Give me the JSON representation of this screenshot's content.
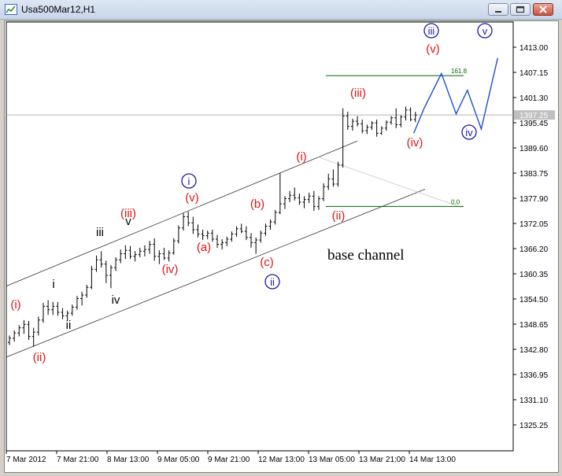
{
  "window": {
    "title": "Usa500Mar12,H1",
    "minimize_icon": "minimize-icon",
    "maximize_icon": "maximize-icon",
    "close_icon": "close-icon"
  },
  "chart_data": {
    "type": "line",
    "symbol": "Usa500Mar12",
    "timeframe": "H1",
    "ylim": [
      1319.4,
      1419.0
    ],
    "y_ticks": [
      "1413.00",
      "1407.15",
      "1401.30",
      "1395.45",
      "1389.60",
      "1383.75",
      "1377.90",
      "1372.05",
      "1366.20",
      "1360.35",
      "1354.50",
      "1348.65",
      "1342.80",
      "1336.95",
      "1331.10",
      "1325.25"
    ],
    "x_ticks": [
      "7 Mar 2012",
      "7 Mar 21:00",
      "8 Mar 13:00",
      "9 Mar 05:00",
      "9 Mar 21:00",
      "12 Mar 13:00",
      "13 Mar 05:00",
      "13 Mar 21:00",
      "14 Mar 13:00"
    ],
    "current_price": "1397.25",
    "price_bars": [
      [
        1344.4,
        1346.0,
        1343.8,
        1345.4
      ],
      [
        1345.4,
        1347.2,
        1344.6,
        1346.6
      ],
      [
        1346.6,
        1348.4,
        1345.8,
        1347.8
      ],
      [
        1347.8,
        1349.6,
        1346.4,
        1348.6
      ],
      [
        1348.6,
        1349.4,
        1345.0,
        1345.8
      ],
      [
        1345.8,
        1347.8,
        1343.4,
        1346.8
      ],
      [
        1346.8,
        1350.4,
        1346.0,
        1349.6
      ],
      [
        1349.6,
        1353.6,
        1349.0,
        1352.8
      ],
      [
        1352.8,
        1354.2,
        1350.8,
        1352.0
      ],
      [
        1352.0,
        1353.8,
        1350.8,
        1352.8
      ],
      [
        1352.8,
        1353.8,
        1350.6,
        1351.4
      ],
      [
        1351.4,
        1352.4,
        1349.8,
        1350.6
      ],
      [
        1350.6,
        1351.8,
        1349.4,
        1351.2
      ],
      [
        1351.2,
        1353.2,
        1350.6,
        1352.6
      ],
      [
        1352.6,
        1355.2,
        1352.0,
        1354.6
      ],
      [
        1354.6,
        1356.2,
        1353.0,
        1355.4
      ],
      [
        1355.4,
        1357.8,
        1354.8,
        1357.2
      ],
      [
        1357.2,
        1362.2,
        1356.8,
        1361.4
      ],
      [
        1361.4,
        1364.6,
        1360.8,
        1363.6
      ],
      [
        1363.6,
        1365.6,
        1361.8,
        1362.6
      ],
      [
        1362.6,
        1363.4,
        1358.2,
        1360.0
      ],
      [
        1360.0,
        1362.4,
        1357.0,
        1361.8
      ],
      [
        1361.8,
        1364.2,
        1361.0,
        1363.6
      ],
      [
        1363.6,
        1366.0,
        1362.8,
        1365.0
      ],
      [
        1365.0,
        1367.0,
        1363.8,
        1365.8
      ],
      [
        1365.8,
        1366.8,
        1363.8,
        1364.4
      ],
      [
        1364.4,
        1365.6,
        1363.2,
        1364.8
      ],
      [
        1364.8,
        1366.4,
        1364.2,
        1365.6
      ],
      [
        1365.6,
        1367.0,
        1364.4,
        1366.0
      ],
      [
        1366.0,
        1368.0,
        1365.0,
        1367.2
      ],
      [
        1367.2,
        1368.6,
        1363.4,
        1364.4
      ],
      [
        1364.4,
        1365.8,
        1362.6,
        1365.0
      ],
      [
        1365.0,
        1366.4,
        1363.6,
        1364.0
      ],
      [
        1364.0,
        1365.8,
        1363.2,
        1365.2
      ],
      [
        1365.2,
        1368.6,
        1364.8,
        1368.0
      ],
      [
        1368.0,
        1371.6,
        1367.4,
        1371.0
      ],
      [
        1371.0,
        1374.4,
        1370.4,
        1373.6
      ],
      [
        1373.6,
        1374.8,
        1371.4,
        1372.2
      ],
      [
        1372.2,
        1373.6,
        1369.6,
        1370.6
      ],
      [
        1370.6,
        1371.8,
        1368.8,
        1369.6
      ],
      [
        1369.6,
        1370.6,
        1368.2,
        1369.2
      ],
      [
        1369.2,
        1370.4,
        1368.4,
        1369.8
      ],
      [
        1369.8,
        1370.6,
        1367.8,
        1368.4
      ],
      [
        1368.4,
        1369.4,
        1366.4,
        1367.2
      ],
      [
        1367.2,
        1368.4,
        1366.0,
        1367.6
      ],
      [
        1367.6,
        1369.0,
        1366.8,
        1368.4
      ],
      [
        1368.4,
        1370.2,
        1367.8,
        1369.6
      ],
      [
        1369.6,
        1371.4,
        1369.0,
        1370.8
      ],
      [
        1370.8,
        1372.0,
        1369.8,
        1370.2
      ],
      [
        1370.2,
        1371.4,
        1368.2,
        1368.8
      ],
      [
        1368.8,
        1369.8,
        1366.4,
        1367.6
      ],
      [
        1367.6,
        1368.8,
        1365.0,
        1368.2
      ],
      [
        1368.2,
        1370.4,
        1367.6,
        1369.8
      ],
      [
        1369.8,
        1372.0,
        1369.2,
        1371.4
      ],
      [
        1371.4,
        1373.0,
        1370.6,
        1372.4
      ],
      [
        1372.4,
        1375.2,
        1371.8,
        1374.6
      ],
      [
        1374.6,
        1383.8,
        1374.2,
        1376.6
      ],
      [
        1376.6,
        1378.4,
        1375.4,
        1377.8
      ],
      [
        1377.8,
        1379.6,
        1377.0,
        1378.6
      ],
      [
        1378.6,
        1380.4,
        1377.4,
        1378.0
      ],
      [
        1378.0,
        1379.0,
        1376.4,
        1377.0
      ],
      [
        1377.0,
        1378.4,
        1375.6,
        1377.6
      ],
      [
        1377.6,
        1379.2,
        1376.8,
        1378.4
      ],
      [
        1378.4,
        1379.6,
        1375.0,
        1376.0
      ],
      [
        1376.0,
        1378.4,
        1375.2,
        1377.8
      ],
      [
        1377.8,
        1381.4,
        1377.2,
        1380.6
      ],
      [
        1380.6,
        1383.6,
        1379.8,
        1382.4
      ],
      [
        1382.4,
        1384.6,
        1380.6,
        1381.2
      ],
      [
        1381.2,
        1386.4,
        1380.6,
        1385.6
      ],
      [
        1385.6,
        1398.8,
        1385.0,
        1397.0
      ],
      [
        1397.0,
        1398.0,
        1393.8,
        1394.6
      ],
      [
        1394.6,
        1396.4,
        1393.6,
        1395.8
      ],
      [
        1395.8,
        1397.0,
        1394.6,
        1395.2
      ],
      [
        1395.2,
        1396.2,
        1393.0,
        1393.6
      ],
      [
        1393.6,
        1395.0,
        1392.8,
        1394.4
      ],
      [
        1394.4,
        1395.8,
        1393.8,
        1395.4
      ],
      [
        1395.4,
        1396.2,
        1392.2,
        1393.0
      ],
      [
        1393.0,
        1394.6,
        1392.6,
        1394.2
      ],
      [
        1394.2,
        1396.0,
        1393.6,
        1395.6
      ],
      [
        1395.6,
        1397.0,
        1395.0,
        1396.6
      ],
      [
        1396.6,
        1398.8,
        1394.2,
        1395.0
      ],
      [
        1395.0,
        1397.2,
        1394.4,
        1396.8
      ],
      [
        1396.8,
        1399.2,
        1396.0,
        1398.4
      ],
      [
        1398.4,
        1399.0,
        1395.8,
        1396.2
      ],
      [
        1396.2,
        1398.0,
        1395.6,
        1397.25
      ]
    ],
    "levels": [
      {
        "label": "161.8",
        "value": 1406.4,
        "color": "#006400"
      },
      {
        "label": "0.0",
        "value": 1376.0,
        "color": "#006400"
      }
    ],
    "projection": {
      "color": "#1e4fd8",
      "points": [
        [
          1393.0,
          -0.2
        ],
        [
          1398.8,
          1.0
        ],
        [
          1406.9,
          3.0
        ],
        [
          1397.5,
          4.7
        ],
        [
          1403.0,
          6.0
        ],
        [
          1394.0,
          7.6
        ],
        [
          1410.5,
          9.5
        ]
      ]
    },
    "wave_labels": [
      {
        "text": "(i)",
        "color": "#e01414",
        "circled": false
      },
      {
        "text": "(ii)",
        "color": "#e01414",
        "circled": false
      },
      {
        "text": "i",
        "color": "#000000",
        "circled": false
      },
      {
        "text": "ii",
        "color": "#000000",
        "circled": false
      },
      {
        "text": "iii",
        "color": "#000000",
        "circled": false
      },
      {
        "text": "iv",
        "color": "#000000",
        "circled": false
      },
      {
        "text": "v",
        "color": "#000000",
        "circled": false
      },
      {
        "text": "(iii)",
        "color": "#e01414",
        "circled": false
      },
      {
        "text": "(iv)",
        "color": "#e01414",
        "circled": false
      },
      {
        "text": "(v)",
        "color": "#e01414",
        "circled": false
      },
      {
        "text": "i",
        "color": "#1a1aa8",
        "circled": true
      },
      {
        "text": "(a)",
        "color": "#e01414",
        "circled": false
      },
      {
        "text": "(b)",
        "color": "#e01414",
        "circled": false
      },
      {
        "text": "(c)",
        "color": "#e01414",
        "circled": false
      },
      {
        "text": "ii",
        "color": "#1a1aa8",
        "circled": true
      },
      {
        "text": "(i)",
        "color": "#e01414",
        "circled": false
      },
      {
        "text": "(ii)",
        "color": "#e01414",
        "circled": false
      },
      {
        "text": "(iii)",
        "color": "#e01414",
        "circled": false
      },
      {
        "text": "(iv)",
        "color": "#e01414",
        "circled": false
      },
      {
        "text": "(v)",
        "color": "#e01414",
        "circled": false
      },
      {
        "text": "iii",
        "color": "#1a1aa8",
        "circled": true
      },
      {
        "text": "iv",
        "color": "#1a1aa8",
        "circled": true
      },
      {
        "text": "v",
        "color": "#1a1aa8",
        "circled": true
      }
    ],
    "annotations": [
      "base channel"
    ],
    "grid": false
  }
}
